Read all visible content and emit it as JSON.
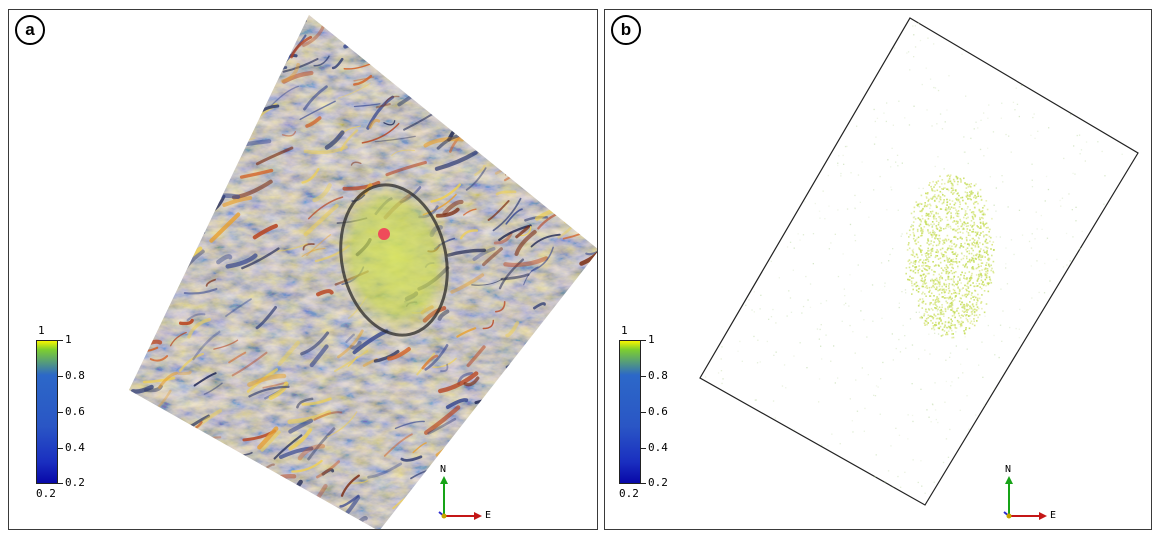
{
  "panels": [
    {
      "id": "a",
      "label": "a"
    },
    {
      "id": "b",
      "label": "b"
    }
  ],
  "colorbar": {
    "top_label": "1",
    "bottom_label": "0.2",
    "ticks": [
      "1",
      "0.8",
      "0.6",
      "0.4",
      "0.2"
    ]
  },
  "axes": {
    "north": "N",
    "east": "E"
  },
  "colors": {
    "marker": "#ef4b5a",
    "outline": "#222222",
    "seed_green": "#c3dc55"
  },
  "icons": [
    "compass-axis-icon",
    "location-marker-icon"
  ]
}
